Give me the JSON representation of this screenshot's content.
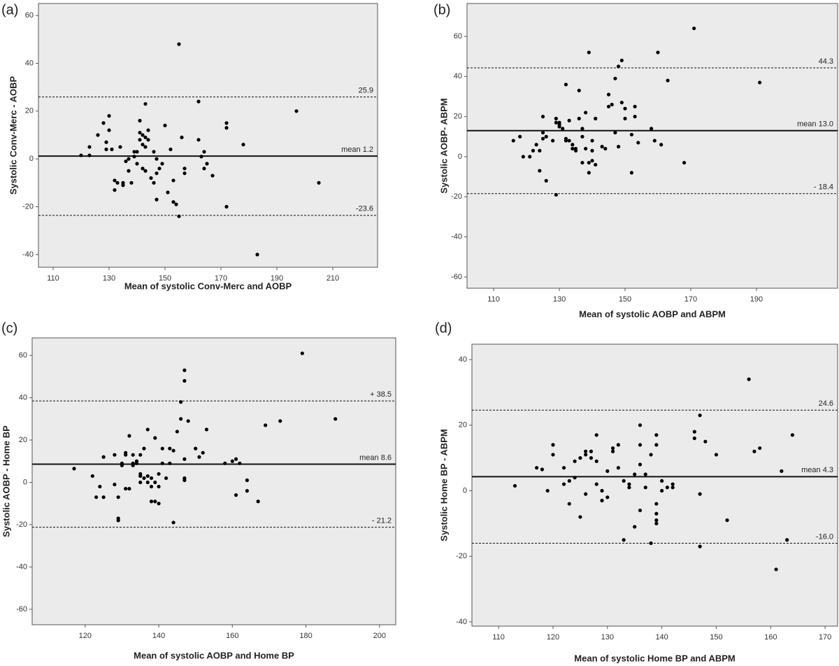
{
  "chart_data": [
    {
      "type": "scatter",
      "panel_label": "(a)",
      "x_label": "Mean of systolic Conv-Merc and AOBP",
      "y_label": "Systolic Conv-Merc - AOBP",
      "xlim": [
        104.75,
        226
      ],
      "ylim": [
        -45.3,
        65
      ],
      "xticks": [
        110,
        130,
        150,
        170,
        190,
        210
      ],
      "yticks": [
        -40,
        -20,
        0,
        20,
        40,
        60
      ],
      "color": "#000000",
      "hlines": [
        {
          "value": 25.9,
          "label": "25.9",
          "style": "dashed"
        },
        {
          "value": 1.2,
          "label": "mean 1.2",
          "style": "solid"
        },
        {
          "value": -23.6,
          "label": "-23.6",
          "style": "dashed"
        }
      ],
      "x": [
        120,
        123,
        123,
        126,
        128,
        129,
        129,
        130,
        130,
        131,
        132,
        132,
        133,
        134,
        135,
        135,
        136,
        137,
        137,
        138,
        139,
        139,
        140,
        140,
        141,
        141,
        141,
        142,
        142,
        142,
        143,
        143,
        143,
        143,
        144,
        144,
        145,
        146,
        146,
        147,
        147,
        147,
        148,
        149,
        150,
        151,
        152,
        153,
        153,
        154,
        155,
        155,
        156,
        157,
        157,
        162,
        162,
        163,
        164,
        164,
        165,
        167,
        172,
        172,
        172,
        178,
        183,
        197,
        205
      ],
      "values": [
        1.5,
        1.5,
        5,
        10,
        15,
        7,
        4,
        18,
        12,
        4,
        -9,
        -13,
        -10,
        5,
        -10,
        -11,
        -1,
        0,
        -5,
        -10,
        3,
        1,
        3,
        -2,
        16,
        11,
        8,
        10,
        6,
        -4,
        9,
        5,
        -5,
        23,
        12,
        8,
        -8,
        -10,
        3,
        -17,
        -6,
        0,
        -4,
        -2,
        14,
        -14,
        4,
        -9,
        -18,
        -19,
        -24,
        48,
        9,
        -4,
        -6,
        24,
        8,
        1,
        -4,
        3,
        -2,
        -7,
        13,
        15,
        -20,
        6,
        -40,
        20,
        -10
      ]
    },
    {
      "type": "scatter",
      "panel_label": "(b)",
      "x_label": "Mean of systolic AOBP and ABPM",
      "y_label": "Systolic AOBP- ABPM",
      "xlim": [
        101.9,
        214.7
      ],
      "ylim": [
        -65.6,
        76.4
      ],
      "xticks": [
        110,
        130,
        150,
        170,
        190
      ],
      "yticks": [
        -60,
        -40,
        -20,
        0,
        20,
        40,
        60
      ],
      "color": "#000000",
      "hlines": [
        {
          "value": 44.3,
          "label": "44.3",
          "style": "dashed"
        },
        {
          "value": 13.0,
          "label": "mean 13.0",
          "style": "solid"
        },
        {
          "value": -18.4,
          "label": "- 18.4",
          "style": "dashed"
        }
      ],
      "x": [
        116,
        118,
        119,
        121,
        122,
        123,
        124,
        124,
        125,
        125,
        125,
        126,
        126,
        128,
        129,
        129,
        129,
        130,
        130,
        130,
        131,
        132,
        132,
        132,
        133,
        133,
        134,
        134,
        135,
        135,
        136,
        136,
        137,
        137,
        137,
        138,
        138,
        139,
        139,
        139,
        140,
        140,
        140,
        141,
        141,
        143,
        144,
        145,
        145,
        146,
        147,
        147,
        148,
        148,
        149,
        149,
        150,
        150,
        152,
        152,
        153,
        153,
        154,
        158,
        159,
        160,
        161,
        163,
        168,
        171,
        191
      ],
      "values": [
        8,
        10,
        0,
        0,
        3,
        6,
        -7,
        3,
        20,
        12,
        9,
        10,
        -12,
        8,
        19,
        17,
        -19,
        16,
        15,
        17,
        14,
        36,
        9,
        8,
        18,
        8,
        4,
        6,
        3,
        4,
        19,
        33,
        14,
        10,
        -3,
        22,
        4,
        -3,
        -8,
        52,
        3,
        -2,
        8,
        -4,
        19,
        5,
        4,
        31,
        25,
        26,
        12,
        39,
        45,
        5,
        27,
        48,
        24,
        19,
        -8,
        11,
        20,
        25,
        7,
        14,
        8,
        52,
        6,
        38,
        -3,
        64,
        37
      ]
    },
    {
      "type": "scatter",
      "panel_label": "(c)",
      "x_label": "Mean of systolic AOBP and Home BP",
      "y_label": "Systolic AOBP - Home BP",
      "xlim": [
        105.6,
        204.4
      ],
      "ylim": [
        -67.3,
        68.3
      ],
      "xticks": [
        120,
        140,
        160,
        180,
        200
      ],
      "yticks": [
        -60,
        -40,
        -20,
        0,
        20,
        40,
        60
      ],
      "color": "#000000",
      "hlines": [
        {
          "value": 38.5,
          "label": "+ 38.5",
          "style": "dashed"
        },
        {
          "value": 8.6,
          "label": "mean 8.6",
          "style": "solid"
        },
        {
          "value": -21.2,
          "label": "- 21.2",
          "style": "dashed"
        }
      ],
      "x": [
        117,
        122,
        123,
        124,
        125,
        125,
        128,
        128,
        129,
        129,
        129,
        130,
        130,
        131,
        131,
        131,
        132,
        132,
        133,
        133,
        133,
        134,
        134,
        135,
        135,
        135,
        135,
        136,
        136,
        137,
        137,
        137,
        138,
        138,
        138,
        139,
        139,
        139,
        140,
        140,
        140,
        141,
        141,
        142,
        143,
        143,
        144,
        144,
        145,
        146,
        146,
        147,
        147,
        147,
        147,
        147,
        148,
        150,
        151,
        152,
        153,
        158,
        160,
        161,
        161,
        162,
        164,
        164,
        167,
        169,
        173,
        179,
        188
      ],
      "values": [
        6.5,
        3,
        -7,
        -2,
        12,
        -7,
        13,
        -1,
        -7,
        -17,
        -18,
        8,
        9,
        14,
        -3,
        13,
        22,
        -3,
        13,
        8,
        9,
        10,
        9,
        4,
        0,
        3,
        13,
        16,
        2,
        3,
        25,
        0,
        2,
        -9,
        -2,
        21,
        0,
        -9,
        4,
        -10,
        -2,
        9,
        16,
        2,
        9,
        16,
        15,
        -19,
        24,
        38,
        30,
        48,
        53,
        11,
        2,
        1,
        29,
        16,
        12,
        14,
        25,
        9,
        10,
        -6,
        11,
        9,
        -4,
        1,
        -9,
        27,
        29,
        61,
        30
      ]
    },
    {
      "type": "scatter",
      "panel_label": "(d)",
      "x_label": "Mean of systolic Home BP and ABPM",
      "y_label": "Systolic Home BP - ABPM",
      "xlim": [
        105.1,
        172.3
      ],
      "ylim": [
        -41.3,
        44.7
      ],
      "xticks": [
        110,
        120,
        130,
        140,
        150,
        160,
        170
      ],
      "yticks": [
        -40,
        -20,
        0,
        20,
        40
      ],
      "color": "#000000",
      "hlines": [
        {
          "value": 24.6,
          "label": "24.6",
          "style": "dashed"
        },
        {
          "value": 4.3,
          "label": "mean 4.3",
          "style": "solid"
        },
        {
          "value": -16.0,
          "label": "-16.0",
          "style": "dashed"
        }
      ],
      "x": [
        113,
        117,
        118,
        119,
        120,
        120,
        122,
        122,
        123,
        123,
        124,
        124,
        125,
        125,
        126,
        126,
        126,
        127,
        127,
        128,
        128,
        128,
        129,
        129,
        130,
        130,
        131,
        131,
        132,
        132,
        133,
        133,
        134,
        134,
        135,
        135,
        136,
        136,
        136,
        136,
        137,
        137,
        138,
        138,
        139,
        139,
        139,
        139,
        139,
        139,
        140,
        140,
        141,
        142,
        142,
        146,
        146,
        147,
        147,
        147,
        148,
        150,
        152,
        156,
        157,
        158,
        161,
        162,
        163,
        164
      ],
      "values": [
        1.5,
        7,
        6.5,
        0,
        11,
        14,
        7,
        2,
        3,
        -4,
        9,
        4,
        -8,
        10,
        12,
        11,
        -1,
        10,
        12,
        17,
        2,
        9,
        0,
        -3,
        -2,
        6,
        13,
        12,
        14,
        7,
        -15,
        3,
        2,
        1,
        -11,
        5,
        8,
        14,
        -6,
        20,
        1,
        5,
        11,
        -16,
        14,
        17,
        -7,
        -9,
        -10,
        -4,
        0,
        3,
        1,
        2,
        1,
        18,
        16,
        23,
        -1,
        -17,
        15,
        11,
        -9,
        34,
        12,
        13,
        -24,
        6,
        -15,
        17
      ]
    }
  ]
}
